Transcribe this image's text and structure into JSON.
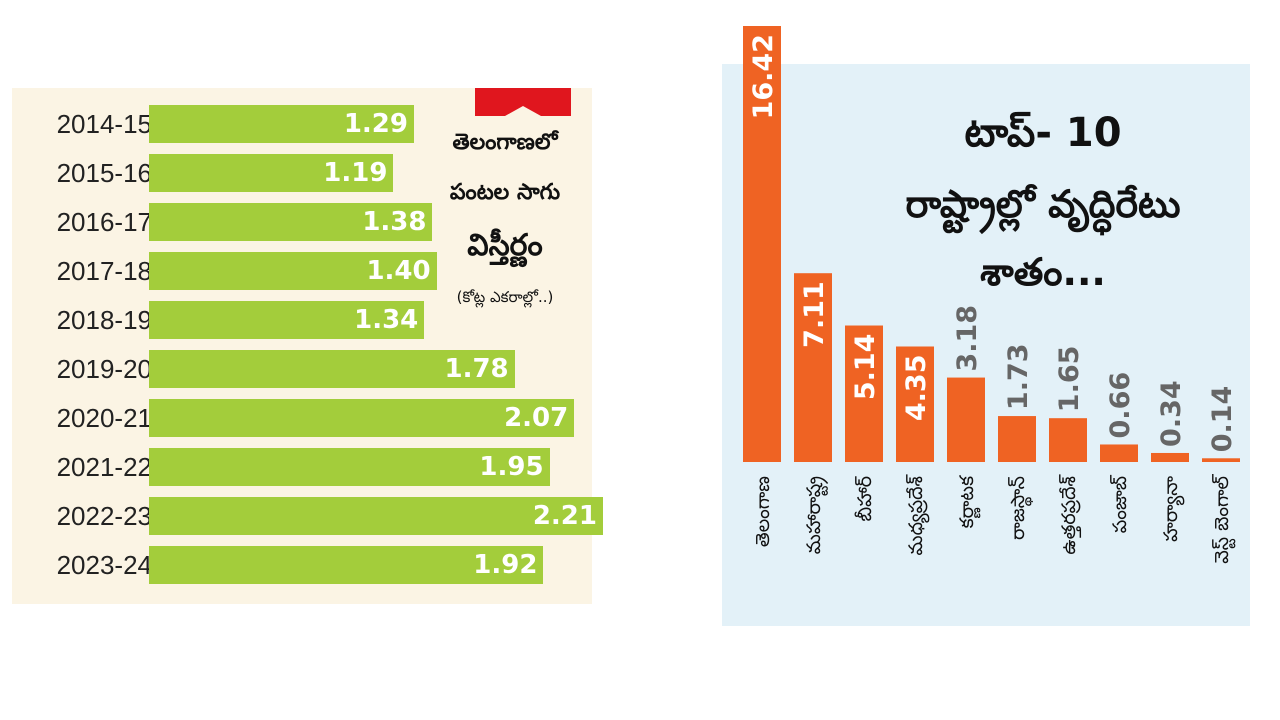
{
  "chart_data": [
    {
      "type": "bar",
      "orientation": "horizontal",
      "title_lines": [
        "తెలంగాణలో",
        "పంటల సాగు",
        "విస్తీర్ణం"
      ],
      "subtitle": "(కోట్ల ఎకరాల్లో..)",
      "categories": [
        "2014-15",
        "2015-16",
        "2016-17",
        "2017-18",
        "2018-19",
        "2019-20",
        "2020-21",
        "2021-22",
        "2022-23",
        "2023-24"
      ],
      "values": [
        1.29,
        1.19,
        1.38,
        1.4,
        1.34,
        1.78,
        2.07,
        1.95,
        2.21,
        1.92
      ],
      "value_labels": [
        "1.29",
        "1.19",
        "1.38",
        "1.40",
        "1.34",
        "1.78",
        "2.07",
        "1.95",
        "2.21",
        "1.92"
      ],
      "colors": {
        "bar": "#a3cd3b",
        "background": "#fbf4e4",
        "accent": "#e0161e"
      }
    },
    {
      "type": "bar",
      "orientation": "vertical",
      "title_lines": [
        "టాప్‌- 10",
        "రాష్ట్రాల్లో వృద్ధిరేటు",
        "శాతం..."
      ],
      "categories": [
        "తెలంగాణ",
        "మహారాష్ట్ర",
        "బీహార్",
        "మధ్యప్రదేశ్",
        "కర్ణాటక",
        "రాజస్థాన్",
        "ఉత్తరప్రదేశ్",
        "పంజాబ్",
        "హర్యానా",
        "వెస్ట్‌ బెంగాల్"
      ],
      "values": [
        16.42,
        7.11,
        5.14,
        4.35,
        3.18,
        1.73,
        1.65,
        0.66,
        0.34,
        0.14
      ],
      "value_labels": [
        "16.42",
        "7.11",
        "5.14",
        "4.35",
        "3.18",
        "1.73",
        "1.65",
        "0.66",
        "0.34",
        "0.14"
      ],
      "colors": {
        "bar": "#ef6323",
        "background": "#e3f1f8",
        "label_inside": "#ffffff",
        "label_outside": "#666666"
      }
    }
  ]
}
